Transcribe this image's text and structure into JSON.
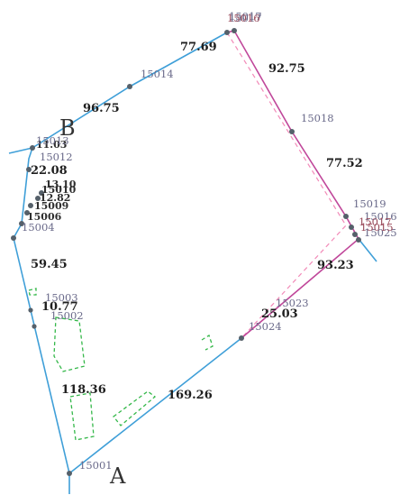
{
  "colors": {
    "boundary_blue": "#3f9fd8",
    "boundary_magenta": "#c0479a",
    "dashed_pink": "#f28ab8",
    "dashed_green": "#35b84a",
    "vertex": "#55606a",
    "label_dark": "#1f1f1f",
    "label_gray": "#6a6a8a"
  },
  "corners": {
    "a": "A",
    "b": "B"
  },
  "lengths": {
    "top_left_edge": "96.75",
    "top_edge": "77.69",
    "upper_right_edge": "92.75",
    "right_edge": "77.52",
    "lower_right_edge": "93.23",
    "center_edge": "25.03",
    "bottom_edge": "169.26",
    "left_lower_edge": "118.36",
    "left_upper_edge": "59.45",
    "left_mid_edge": "10.77",
    "left_cluster_edge": "22.08",
    "left_cluster_a": "11.03",
    "left_cluster_b": "13.10",
    "left_cluster_c": "12.82"
  },
  "point_ids": {
    "p15001": "15001",
    "p15003": "15003",
    "p15004": "15004",
    "p15012": "15012",
    "p15013": "15013",
    "p15014": "15014",
    "p15015": "15017",
    "p15018": "15018",
    "p15019": "15019",
    "p15023": "15023",
    "p15024": "15024",
    "p15025": "15025",
    "p15017": "15017",
    "p15016": "15016",
    "p15002": "15002"
  },
  "overlap_labels": {
    "top_stack": "15016",
    "right_stack": "15017",
    "right_stack2": "15015",
    "left_stack": "15010",
    "left_stack2": "15009",
    "left_stack3": "15006"
  }
}
